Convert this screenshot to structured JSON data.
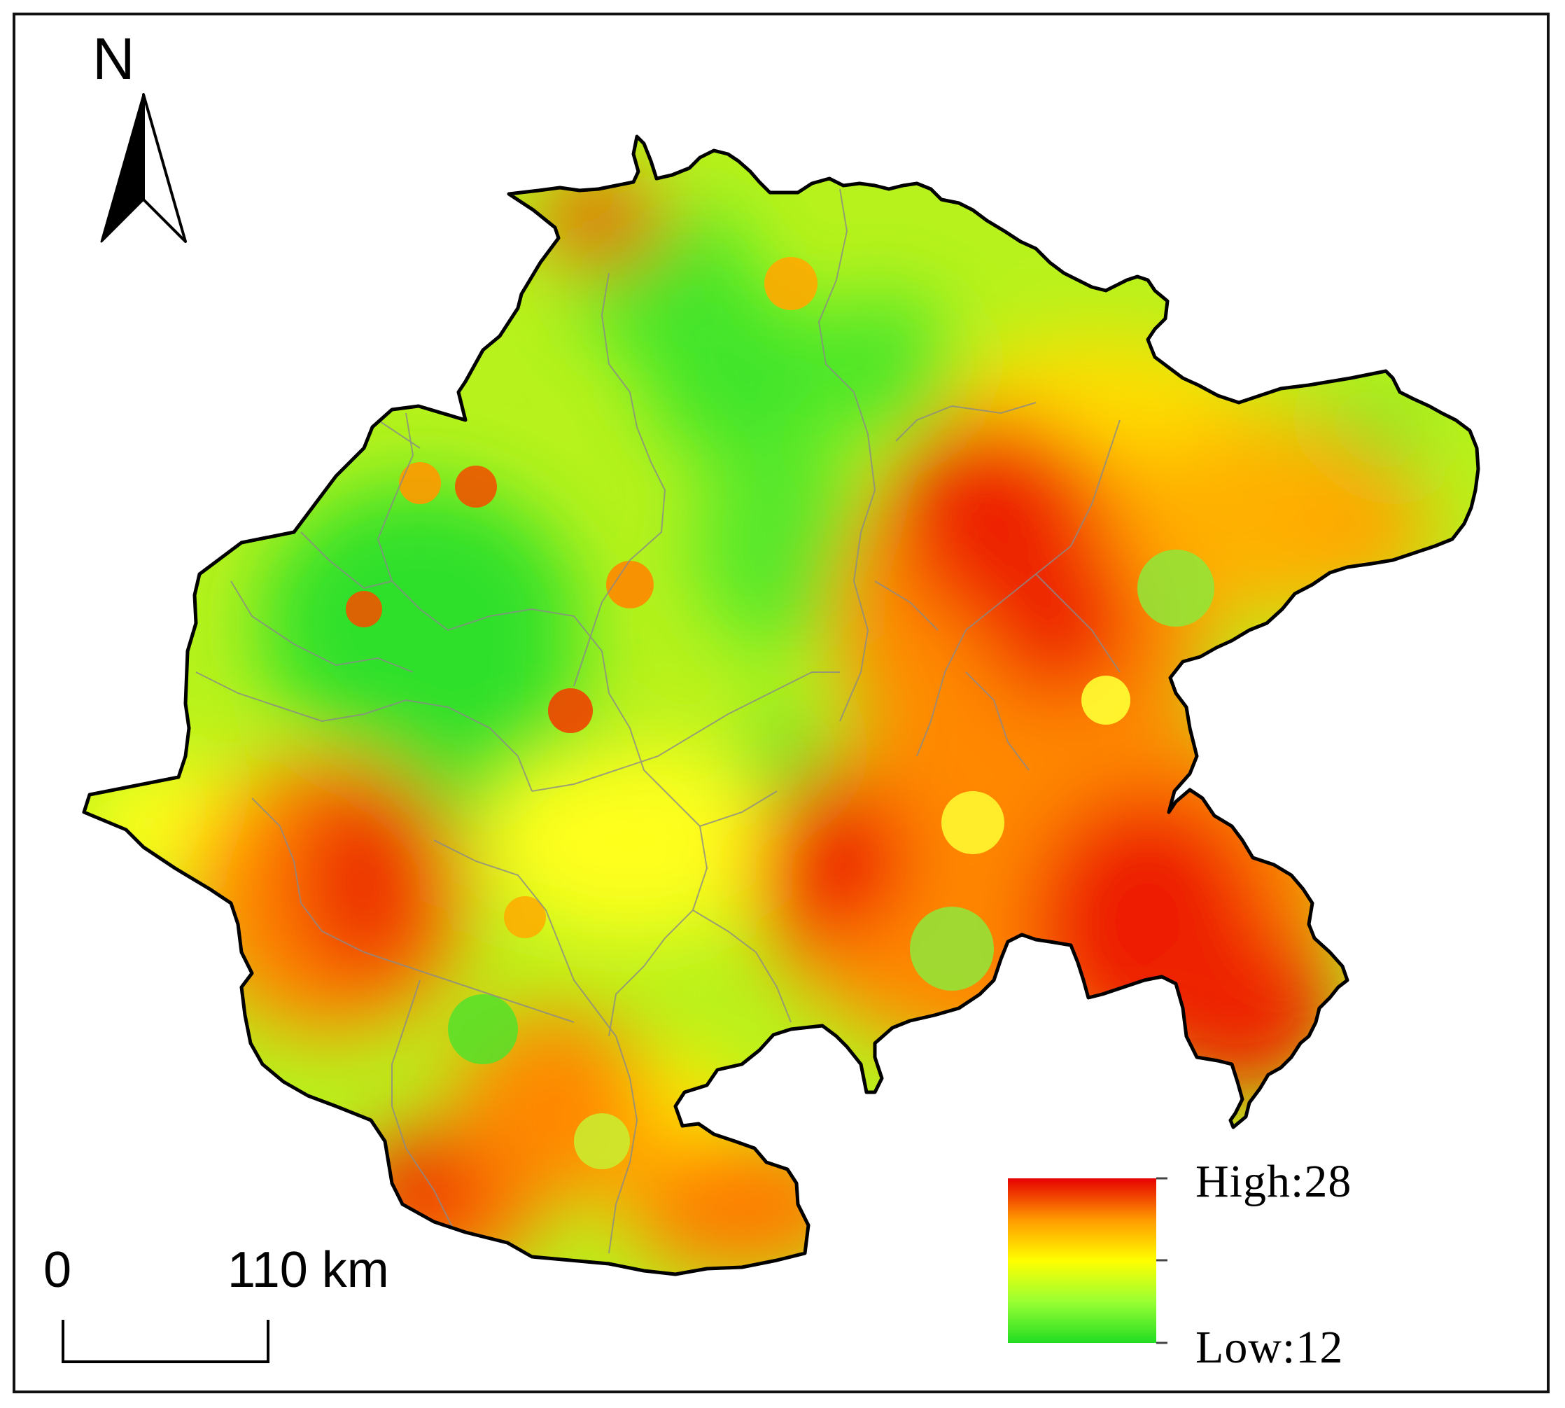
{
  "north_arrow": {
    "label": "N",
    "icon": "north-arrow-icon"
  },
  "scale_bar": {
    "start_label": "0",
    "end_label": "110 km"
  },
  "legend": {
    "high_label": "High:28",
    "low_label": "Low:12",
    "high_value": 28,
    "low_value": 12,
    "colors": {
      "high": "#e60000",
      "mid_high": "#ff9900",
      "mid": "#ffff00",
      "mid_low": "#99ff33",
      "low": "#22dd22"
    }
  },
  "map": {
    "outline_color": "#000000",
    "internal_boundary_color": "#8a8a8a"
  }
}
